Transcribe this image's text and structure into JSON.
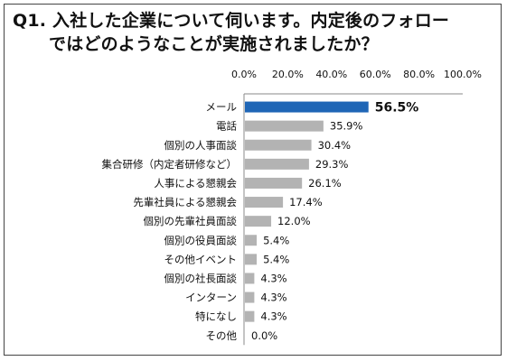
{
  "chart_data": {
    "type": "bar",
    "orientation": "horizontal",
    "title_line1": "Q1. 入社した企業について伺います。内定後のフォロー",
    "title_line2": "ではどのようなことが実施されましたか？",
    "xlim": [
      0,
      100
    ],
    "ticks": [
      "0.0%",
      "20.0%",
      "40.0%",
      "60.0%",
      "80.0%",
      "100.0%"
    ],
    "tick_values": [
      0,
      20,
      40,
      60,
      80,
      100
    ],
    "categories": [
      "メール",
      "電話",
      "個別の人事面談",
      "集合研修（内定者研修など）",
      "人事による懇親会",
      "先輩社員による懇親会",
      "個別の先輩社員面談",
      "個別の役員面談",
      "その他イベント",
      "個別の社長面談",
      "インターン",
      "特になし",
      "その他"
    ],
    "values": [
      56.5,
      35.9,
      30.4,
      29.3,
      26.1,
      17.4,
      12.0,
      5.4,
      5.4,
      4.3,
      4.3,
      4.3,
      0.0
    ],
    "value_labels": [
      "56.5%",
      "35.9%",
      "30.4%",
      "29.3%",
      "26.1%",
      "17.4%",
      "12.0%",
      "5.4%",
      "5.4%",
      "4.3%",
      "4.3%",
      "4.3%",
      "0.0%"
    ],
    "highlight_index": 0,
    "colors": {
      "highlight": "#1f66b6",
      "bar": "#b3b3b3",
      "axis": "#888888"
    },
    "grid": false
  }
}
